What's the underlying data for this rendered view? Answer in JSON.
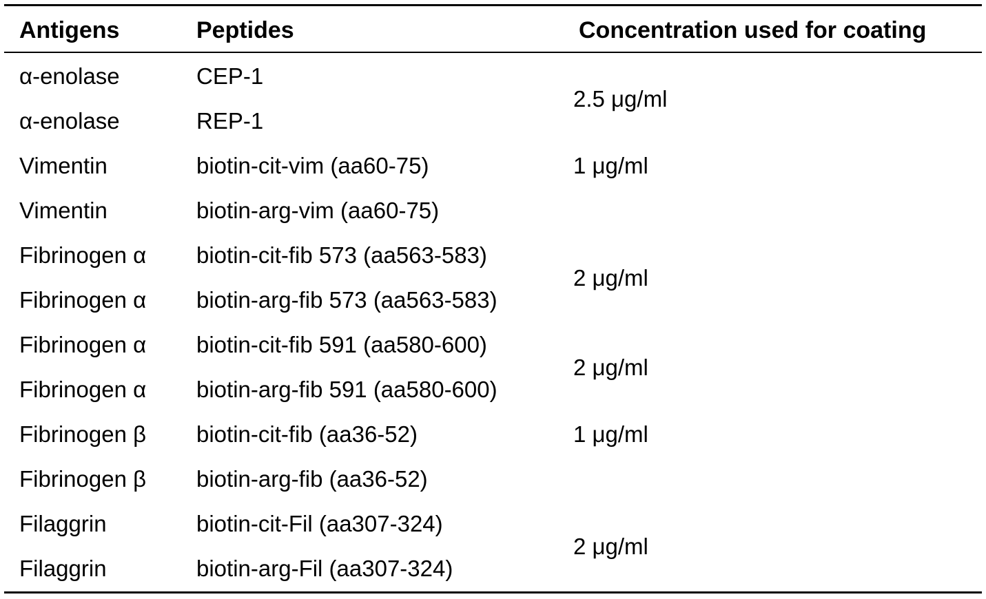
{
  "table": {
    "headers": {
      "antigens": "Antigens",
      "peptides": "Peptides",
      "concentration": "Concentration used for coating"
    },
    "rows": [
      {
        "antigen": "α-enolase",
        "peptide": "CEP-1"
      },
      {
        "antigen": "α-enolase",
        "peptide": "REP-1"
      },
      {
        "antigen": "Vimentin",
        "peptide": "biotin-cit-vim (aa60-75)"
      },
      {
        "antigen": "Vimentin",
        "peptide": "biotin-arg-vim (aa60-75)"
      },
      {
        "antigen": "Fibrinogen α",
        "peptide": "biotin-cit-fib 573 (aa563-583)"
      },
      {
        "antigen": "Fibrinogen α",
        "peptide": "biotin-arg-fib 573 (aa563-583)"
      },
      {
        "antigen": "Fibrinogen α",
        "peptide": "biotin-cit-fib 591 (aa580-600)"
      },
      {
        "antigen": "Fibrinogen α",
        "peptide": "biotin-arg-fib 591 (aa580-600)"
      },
      {
        "antigen": "Fibrinogen β",
        "peptide": "biotin-cit-fib (aa36-52)"
      },
      {
        "antigen": "Fibrinogen β",
        "peptide": "biotin-arg-fib (aa36-52)"
      },
      {
        "antigen": "Filaggrin",
        "peptide": "biotin-cit-Fil (aa307-324)"
      },
      {
        "antigen": "Filaggrin",
        "peptide": "biotin-arg-Fil (aa307-324)"
      }
    ],
    "concentrations": [
      "2.5 μg/ml",
      "1 μg/ml",
      "2 μg/ml",
      "2 μg/ml",
      "1 μg/ml",
      "2 μg/ml"
    ]
  }
}
